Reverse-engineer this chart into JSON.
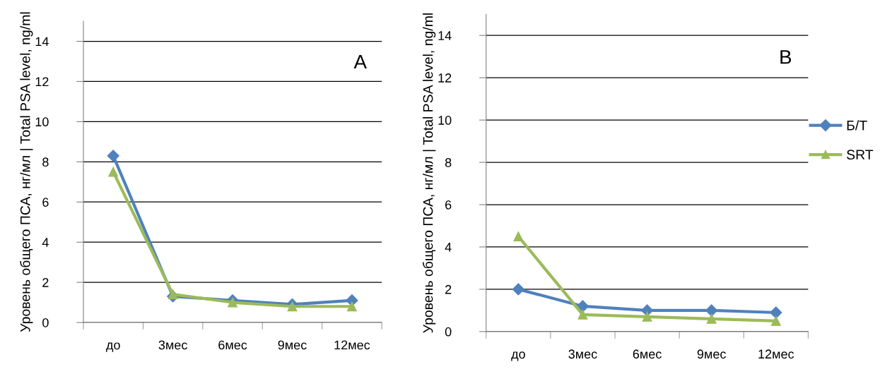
{
  "chart_data": [
    {
      "type": "line",
      "ylabel": "Уровень общего ПСА, нг/мл | Total PSA level, ng/ml",
      "annotations": [
        "A"
      ],
      "categories": [
        "до",
        "3мес",
        "6мес",
        "9мес",
        "12мес"
      ],
      "series": [
        {
          "color": "#4f81bd",
          "marker": "diamond",
          "values": [
            8.3,
            1.3,
            1.1,
            0.9,
            1.1
          ]
        },
        {
          "color": "#9bbb59",
          "marker": "triangle",
          "values": [
            7.5,
            1.4,
            1.0,
            0.8,
            0.8
          ]
        }
      ],
      "ylim": [
        0,
        15
      ],
      "yticks": [
        0,
        2,
        4,
        6,
        8,
        10,
        12,
        14
      ],
      "grid": "y",
      "line_style": "solid"
    },
    {
      "type": "line",
      "ylabel": "Уровень общего ПСА, нг/мл | Total PSA level, ng/ml",
      "annotations": [
        "B"
      ],
      "categories": [
        "до",
        "3мес",
        "6мес",
        "9мес",
        "12мес"
      ],
      "series": [
        {
          "name": "Б/Т",
          "color": "#4f81bd",
          "marker": "diamond",
          "values": [
            2.0,
            1.2,
            1.0,
            1.0,
            0.9
          ]
        },
        {
          "name": "SRT",
          "color": "#9bbb59",
          "marker": "triangle",
          "values": [
            4.5,
            0.8,
            0.7,
            0.6,
            0.5
          ]
        }
      ],
      "ylim": [
        0,
        15
      ],
      "yticks": [
        0,
        2,
        4,
        6,
        8,
        10,
        12,
        14
      ],
      "grid": "y",
      "legend": "right",
      "line_style": "solid"
    }
  ]
}
